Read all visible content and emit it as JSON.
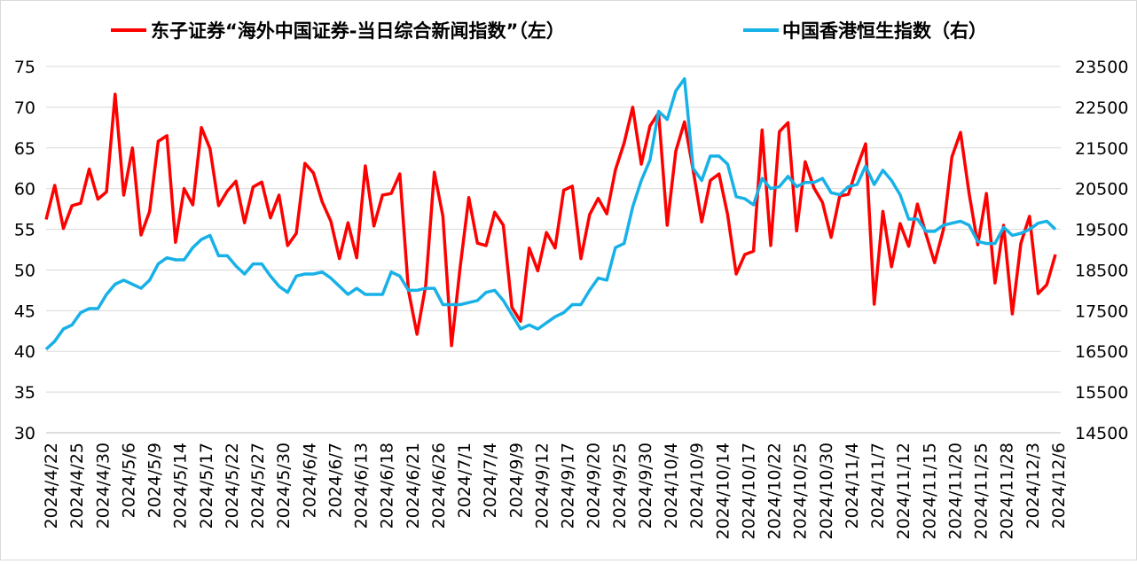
{
  "chart_data": {
    "type": "line",
    "legend": {
      "placement": "top-center",
      "entries": [
        {
          "label": "东子证券“海外中国证券-当日综合新闻指数”（左）",
          "color": "#ff0000"
        },
        {
          "label": "中国香港恒生指数（右）",
          "color": "#17b1e7"
        }
      ]
    },
    "y_left": {
      "min": 30,
      "max": 75,
      "step": 5,
      "ticks": [
        "30",
        "35",
        "40",
        "45",
        "50",
        "55",
        "60",
        "65",
        "70",
        "75"
      ]
    },
    "y_right": {
      "min": 14500,
      "max": 23500,
      "step": 1000,
      "ticks": [
        "14500",
        "15500",
        "16500",
        "17500",
        "18500",
        "19500",
        "20500",
        "21500",
        "22500",
        "23500"
      ]
    },
    "grid": true,
    "x_labels": [
      "2024/4/22",
      "2024/4/25",
      "2024/4/30",
      "2024/5/6",
      "2024/5/9",
      "2024/5/14",
      "2024/5/17",
      "2024/5/22",
      "2024/5/27",
      "2024/5/30",
      "2024/6/4",
      "2024/6/7",
      "2024/6/13",
      "2024/6/18",
      "2024/6/21",
      "2024/6/26",
      "2024/7/1",
      "2024/7/4",
      "2024/9/9",
      "2024/9/12",
      "2024/9/17",
      "2024/9/20",
      "2024/9/25",
      "2024/9/30",
      "2024/10/4",
      "2024/10/9",
      "2024/10/14",
      "2024/10/17",
      "2024/10/22",
      "2024/10/25",
      "2024/10/30",
      "2024/11/4",
      "2024/11/7",
      "2024/11/12",
      "2024/11/15",
      "2024/11/20",
      "2024/11/25",
      "2024/11/28",
      "2024/12/3",
      "2024/12/6"
    ],
    "series": [
      {
        "name": "东子证券“海外中国证券-当日综合新闻指数”（左）",
        "axis": "left",
        "color": "#ff0000",
        "values": [
          56.2,
          60.4,
          55.1,
          57.9,
          58.2,
          62.4,
          58.7,
          59.6,
          71.6,
          59.2,
          65.0,
          54.3,
          57.2,
          65.8,
          66.5,
          53.4,
          60.0,
          58.0,
          67.5,
          64.9,
          57.9,
          59.7,
          60.9,
          55.8,
          60.2,
          60.8,
          56.4,
          59.2,
          53.0,
          54.5,
          63.1,
          61.9,
          58.4,
          56.0,
          51.4,
          55.8,
          51.5,
          62.8,
          55.4,
          59.2,
          59.4,
          61.8,
          47.5,
          42.1,
          48.1,
          62.0,
          56.6,
          40.7,
          50.4,
          58.9,
          53.3,
          53.0,
          57.1,
          55.5,
          45.4,
          43.7,
          52.7,
          49.9,
          54.6,
          52.7,
          59.8,
          60.3,
          51.4,
          56.8,
          58.8,
          56.9,
          62.3,
          65.6,
          70.0,
          63.0,
          67.7,
          69.3,
          55.5,
          64.6,
          68.2,
          62.3,
          55.9,
          61.0,
          61.8,
          56.8,
          49.5,
          51.9,
          52.3,
          67.2,
          53.0,
          67.0,
          68.1,
          54.8,
          63.3,
          60.1,
          58.3,
          54.0,
          59.1,
          59.3,
          62.6,
          65.5,
          45.8,
          57.2,
          50.4,
          55.7,
          52.9,
          58.1,
          54.4,
          50.9,
          54.9,
          63.9,
          66.9,
          59.4,
          53.1,
          59.4,
          48.4,
          55.5,
          44.6,
          53.3,
          56.6,
          47.1,
          48.2,
          51.9
        ]
      },
      {
        "name": "中国香港恒生指数（右）",
        "axis": "right",
        "color": "#17b1e7",
        "values": [
          16550,
          16750,
          17050,
          17150,
          17450,
          17550,
          17550,
          17900,
          18150,
          18250,
          18150,
          18050,
          18250,
          18650,
          18800,
          18750,
          18750,
          19050,
          19250,
          19350,
          18850,
          18850,
          18600,
          18400,
          18650,
          18650,
          18350,
          18100,
          17950,
          18350,
          18400,
          18400,
          18450,
          18300,
          18100,
          17900,
          18050,
          17900,
          17900,
          17900,
          18450,
          18350,
          18000,
          18000,
          18050,
          18050,
          17650,
          17650,
          17650,
          17700,
          17750,
          17950,
          18000,
          17750,
          17400,
          17050,
          17150,
          17050,
          17200,
          17350,
          17450,
          17650,
          17650,
          18000,
          18300,
          18250,
          19050,
          19150,
          20050,
          20700,
          21200,
          22400,
          22200,
          22900,
          23200,
          21000,
          20700,
          21300,
          21300,
          21100,
          20300,
          20250,
          20100,
          20750,
          20500,
          20550,
          20800,
          20550,
          20650,
          20650,
          20750,
          20400,
          20350,
          20550,
          20600,
          21050,
          20600,
          20950,
          20700,
          20350,
          19750,
          19750,
          19450,
          19450,
          19600,
          19650,
          19700,
          19600,
          19200,
          19150,
          19150,
          19550,
          19350,
          19400,
          19500,
          19650,
          19700,
          19500
        ]
      }
    ]
  }
}
